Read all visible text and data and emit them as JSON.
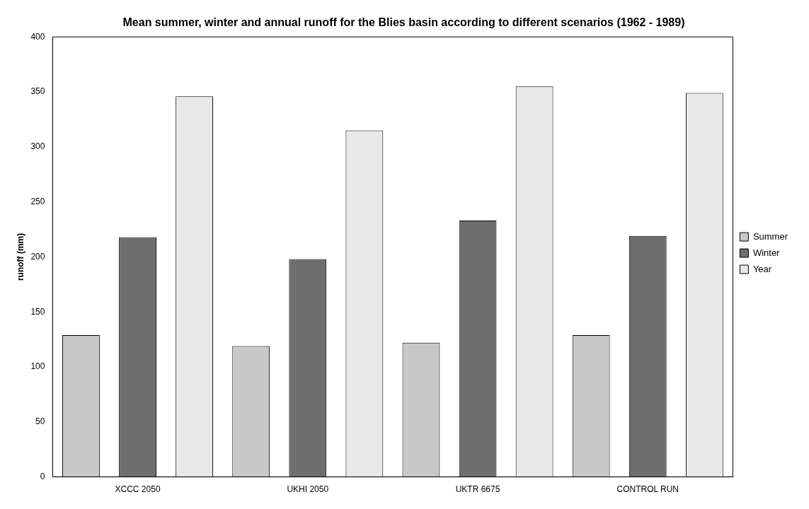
{
  "chart_data": {
    "type": "bar",
    "title": "Mean summer, winter and annual runoff for the Blies basin according to different scenarios (1962 - 1989)",
    "ylabel": "runoff (mm)",
    "categories": [
      "XCCC 2050",
      "UKHI 2050",
      "UKTR 6675",
      "CONTROL RUN"
    ],
    "series": [
      {
        "name": "Summer",
        "color": "#c8c8c8",
        "values": [
          129,
          119,
          122,
          129
        ]
      },
      {
        "name": "Winter",
        "color": "#6e6e6e",
        "values": [
          218,
          198,
          233,
          219
        ]
      },
      {
        "name": "Year",
        "color": "#e8e8e8",
        "values": [
          346,
          315,
          355,
          349
        ]
      }
    ],
    "ylim": [
      0,
      400
    ],
    "yticks": [
      0,
      50,
      100,
      150,
      200,
      250,
      300,
      350,
      400
    ],
    "grid": false,
    "legend": "right"
  }
}
